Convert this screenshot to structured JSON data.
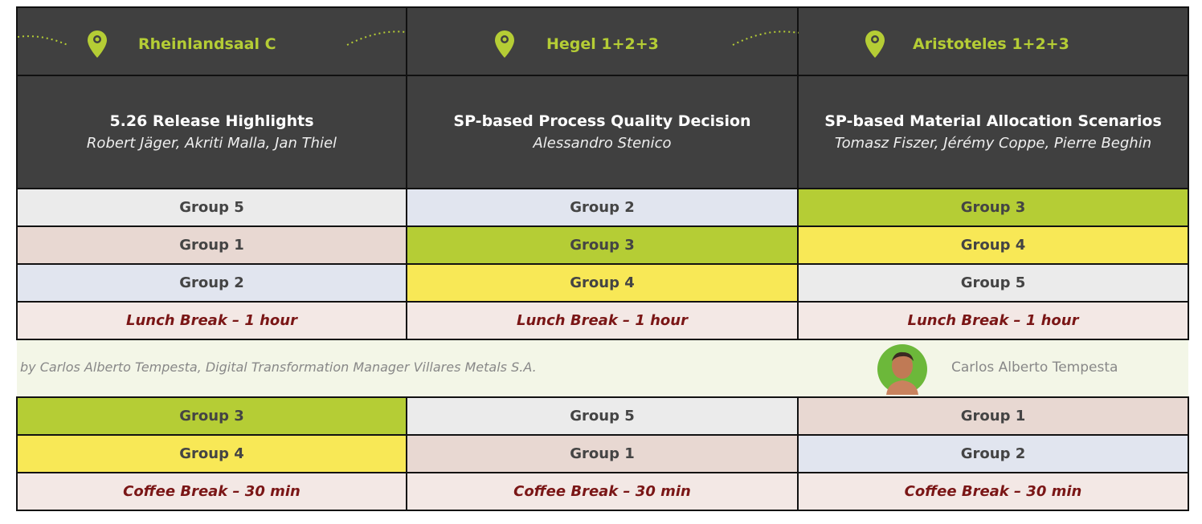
{
  "rooms": [
    "Rheinlandsaal C",
    "Hegel 1+2+3",
    "Aristoteles 1+2+3"
  ],
  "sessions": [
    {
      "title": "5.26 Release Highlights",
      "speakers": "Robert Jäger, Akriti Malla, Jan Thiel"
    },
    {
      "title": "SP-based Process Quality Decision",
      "speakers": "Alessandro Stenico"
    },
    {
      "title": "SP-based Material Allocation Scenarios",
      "speakers": "Tomasz Fiszer, Jérémy Coppe, Pierre Beghin"
    }
  ],
  "rows_before": [
    [
      "Group 5",
      "Group 2",
      "Group 3"
    ],
    [
      "Group 1",
      "Group 3",
      "Group 4"
    ],
    [
      "Group 2",
      "Group 4",
      "Group 5"
    ],
    [
      "Lunch Break – 1 hour",
      "Lunch Break – 1 hour",
      "Lunch Break – 1 hour"
    ]
  ],
  "banner": {
    "byline": "by Carlos Alberto Tempesta, Digital Transformation Manager Villares Metals S.A.",
    "name": "Carlos Alberto Tempesta"
  },
  "rows_after": [
    [
      "Group 3",
      "Group 5",
      "Group 1"
    ],
    [
      "Group 4",
      "Group 1",
      "Group 2"
    ],
    [
      "Coffee Break – 30 min",
      "Coffee Break – 30 min",
      "Coffee Break – 30 min"
    ]
  ]
}
